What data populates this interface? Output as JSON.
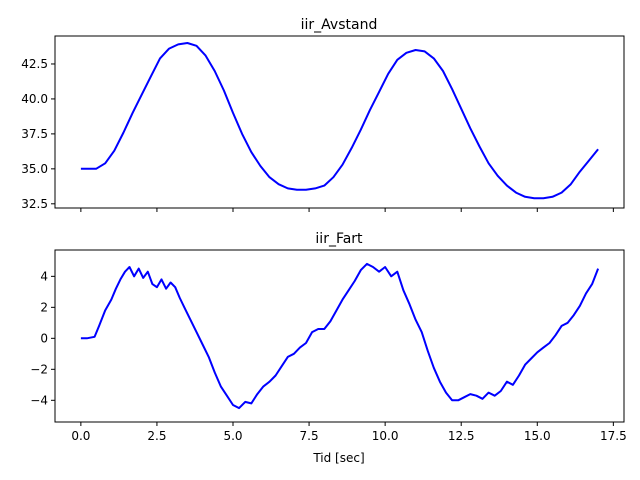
{
  "chart_data": [
    {
      "type": "line",
      "title": "iir_Avstand",
      "xlabel": "",
      "ylabel": "",
      "xlim": [
        -0.85,
        17.85
      ],
      "ylim": [
        32.2,
        44.5
      ],
      "xticks": [
        0.0,
        2.5,
        5.0,
        7.5,
        10.0,
        12.5,
        15.0,
        17.5
      ],
      "yticks": [
        32.5,
        35.0,
        37.5,
        40.0,
        42.5
      ],
      "ytick_labels": [
        "32.5",
        "35.0",
        "37.5",
        "40.0",
        "42.5"
      ],
      "grid": false,
      "color": "#0000ff",
      "series": [
        {
          "x": [
            0.0,
            0.2,
            0.5,
            0.8,
            1.1,
            1.4,
            1.7,
            2.0,
            2.3,
            2.6,
            2.9,
            3.2,
            3.5,
            3.8,
            4.1,
            4.4,
            4.7,
            5.0,
            5.3,
            5.6,
            5.9,
            6.2,
            6.5,
            6.8,
            7.1,
            7.4,
            7.7,
            8.0,
            8.3,
            8.6,
            8.9,
            9.2,
            9.5,
            9.8,
            10.1,
            10.4,
            10.7,
            11.0,
            11.3,
            11.6,
            11.9,
            12.2,
            12.5,
            12.8,
            13.1,
            13.4,
            13.7,
            14.0,
            14.3,
            14.6,
            14.9,
            15.2,
            15.5,
            15.8,
            16.1,
            16.4,
            16.7,
            17.0
          ],
          "y": [
            35.0,
            35.0,
            35.0,
            35.4,
            36.3,
            37.6,
            39.0,
            40.3,
            41.6,
            42.9,
            43.6,
            43.9,
            44.0,
            43.8,
            43.1,
            42.0,
            40.6,
            39.0,
            37.5,
            36.2,
            35.2,
            34.4,
            33.9,
            33.6,
            33.5,
            33.5,
            33.6,
            33.8,
            34.4,
            35.3,
            36.5,
            37.8,
            39.2,
            40.5,
            41.8,
            42.8,
            43.3,
            43.5,
            43.4,
            42.9,
            42.0,
            40.7,
            39.3,
            37.9,
            36.6,
            35.4,
            34.5,
            33.8,
            33.3,
            33.0,
            32.9,
            32.9,
            33.0,
            33.3,
            33.9,
            34.8,
            35.6,
            36.4
          ]
        }
      ]
    },
    {
      "type": "line",
      "title": "iir_Fart",
      "xlabel": "Tid [sec]",
      "ylabel": "",
      "xlim": [
        -0.85,
        17.85
      ],
      "ylim": [
        -5.4,
        5.7
      ],
      "xticks": [
        0.0,
        2.5,
        5.0,
        7.5,
        10.0,
        12.5,
        15.0,
        17.5
      ],
      "xtick_labels": [
        "0.0",
        "2.5",
        "5.0",
        "7.5",
        "10.0",
        "12.5",
        "15.0",
        "17.5"
      ],
      "yticks": [
        -4,
        -2,
        0,
        2,
        4
      ],
      "ytick_labels": [
        "−4",
        "−2",
        "0",
        "2",
        "4"
      ],
      "grid": false,
      "color": "#0000ff",
      "series": [
        {
          "x": [
            0.0,
            0.2,
            0.45,
            0.6,
            0.8,
            1.0,
            1.15,
            1.3,
            1.45,
            1.6,
            1.75,
            1.9,
            2.05,
            2.2,
            2.35,
            2.5,
            2.65,
            2.8,
            2.95,
            3.1,
            3.25,
            3.4,
            3.6,
            3.8,
            4.0,
            4.2,
            4.4,
            4.6,
            4.8,
            5.0,
            5.2,
            5.4,
            5.6,
            5.8,
            6.0,
            6.2,
            6.4,
            6.6,
            6.8,
            7.0,
            7.2,
            7.4,
            7.6,
            7.8,
            8.0,
            8.2,
            8.4,
            8.6,
            8.8,
            9.0,
            9.2,
            9.4,
            9.6,
            9.8,
            10.0,
            10.2,
            10.4,
            10.6,
            10.8,
            11.0,
            11.2,
            11.4,
            11.6,
            11.8,
            12.0,
            12.2,
            12.4,
            12.6,
            12.8,
            13.0,
            13.2,
            13.4,
            13.6,
            13.8,
            14.0,
            14.2,
            14.4,
            14.6,
            14.8,
            15.0,
            15.2,
            15.4,
            15.6,
            15.8,
            16.0,
            16.2,
            16.4,
            16.6,
            16.8,
            17.0
          ],
          "y": [
            0.0,
            0.0,
            0.1,
            0.8,
            1.8,
            2.5,
            3.2,
            3.8,
            4.3,
            4.6,
            4.0,
            4.5,
            3.9,
            4.3,
            3.5,
            3.3,
            3.8,
            3.2,
            3.6,
            3.3,
            2.6,
            2.0,
            1.2,
            0.4,
            -0.4,
            -1.2,
            -2.2,
            -3.1,
            -3.7,
            -4.3,
            -4.5,
            -4.1,
            -4.2,
            -3.6,
            -3.1,
            -2.8,
            -2.4,
            -1.8,
            -1.2,
            -1.0,
            -0.6,
            -0.3,
            0.4,
            0.6,
            0.6,
            1.1,
            1.8,
            2.5,
            3.1,
            3.7,
            4.4,
            4.8,
            4.6,
            4.3,
            4.6,
            4.0,
            4.3,
            3.1,
            2.2,
            1.2,
            0.4,
            -0.8,
            -1.9,
            -2.8,
            -3.5,
            -4.0,
            -4.0,
            -3.8,
            -3.6,
            -3.7,
            -3.9,
            -3.5,
            -3.7,
            -3.4,
            -2.8,
            -3.0,
            -2.4,
            -1.7,
            -1.3,
            -0.9,
            -0.6,
            -0.3,
            0.2,
            0.8,
            1.0,
            1.5,
            2.1,
            2.9,
            3.5,
            4.5
          ]
        }
      ]
    }
  ]
}
